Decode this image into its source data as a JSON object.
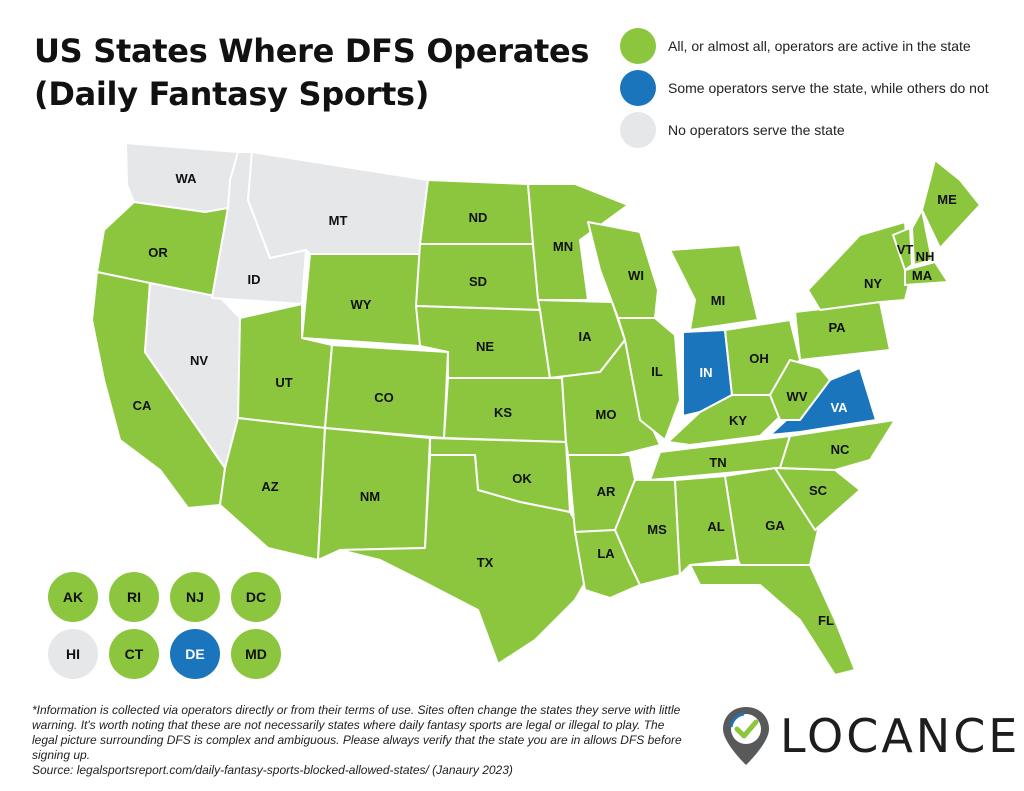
{
  "title": {
    "line1": "US States Where DFS Operates",
    "line2": "(Daily Fantasy Sports)"
  },
  "colors": {
    "all": "#8cc63f",
    "some": "#1b75bc",
    "none": "#e6e7e8",
    "border": "#ffffff"
  },
  "legend": [
    {
      "status": "all",
      "label": "All, or almost all, operators are active in the state"
    },
    {
      "status": "some",
      "label": "Some operators serve the state, while others do not"
    },
    {
      "status": "none",
      "label": "No operators serve the state"
    }
  ],
  "states": [
    {
      "code": "WA",
      "status": "none"
    },
    {
      "code": "OR",
      "status": "all"
    },
    {
      "code": "CA",
      "status": "all"
    },
    {
      "code": "NV",
      "status": "none"
    },
    {
      "code": "ID",
      "status": "none"
    },
    {
      "code": "MT",
      "status": "none"
    },
    {
      "code": "WY",
      "status": "all"
    },
    {
      "code": "UT",
      "status": "all"
    },
    {
      "code": "AZ",
      "status": "all"
    },
    {
      "code": "CO",
      "status": "all"
    },
    {
      "code": "NM",
      "status": "all"
    },
    {
      "code": "ND",
      "status": "all"
    },
    {
      "code": "SD",
      "status": "all"
    },
    {
      "code": "NE",
      "status": "all"
    },
    {
      "code": "KS",
      "status": "all"
    },
    {
      "code": "OK",
      "status": "all"
    },
    {
      "code": "TX",
      "status": "all"
    },
    {
      "code": "MN",
      "status": "all"
    },
    {
      "code": "IA",
      "status": "all"
    },
    {
      "code": "MO",
      "status": "all"
    },
    {
      "code": "AR",
      "status": "all"
    },
    {
      "code": "LA",
      "status": "all"
    },
    {
      "code": "WI",
      "status": "all"
    },
    {
      "code": "IL",
      "status": "all"
    },
    {
      "code": "MI",
      "status": "all"
    },
    {
      "code": "IN",
      "status": "some"
    },
    {
      "code": "OH",
      "status": "all"
    },
    {
      "code": "KY",
      "status": "all"
    },
    {
      "code": "TN",
      "status": "all"
    },
    {
      "code": "MS",
      "status": "all"
    },
    {
      "code": "AL",
      "status": "all"
    },
    {
      "code": "GA",
      "status": "all"
    },
    {
      "code": "FL",
      "status": "all"
    },
    {
      "code": "SC",
      "status": "all"
    },
    {
      "code": "NC",
      "status": "all"
    },
    {
      "code": "VA",
      "status": "some"
    },
    {
      "code": "WV",
      "status": "all"
    },
    {
      "code": "PA",
      "status": "all"
    },
    {
      "code": "NY",
      "status": "all"
    },
    {
      "code": "VT",
      "status": "all"
    },
    {
      "code": "NH",
      "status": "all"
    },
    {
      "code": "ME",
      "status": "all"
    },
    {
      "code": "MA",
      "status": "all"
    }
  ],
  "small_states": [
    {
      "code": "AK",
      "status": "all"
    },
    {
      "code": "RI",
      "status": "all"
    },
    {
      "code": "NJ",
      "status": "all"
    },
    {
      "code": "DC",
      "status": "all"
    },
    {
      "code": "HI",
      "status": "none"
    },
    {
      "code": "CT",
      "status": "all"
    },
    {
      "code": "DE",
      "status": "some"
    },
    {
      "code": "MD",
      "status": "all"
    }
  ],
  "footnote": "*Information is collected via operators directly or from their terms of use. Sites often change the states they serve with little warning. It's worth noting that these are not necessarily states where daily fantasy sports are legal or illegal to play. The legal picture surrounding DFS is complex and ambiguous. Please always verify that the state you are in allows DFS before signing up.",
  "source": "Source: legalsportsreport.com/daily-fantasy-sports-blocked-allowed-states/  (Janaury 2023)",
  "logo": {
    "text": "LOCANCE",
    "icon": "map-pin-check-icon"
  }
}
